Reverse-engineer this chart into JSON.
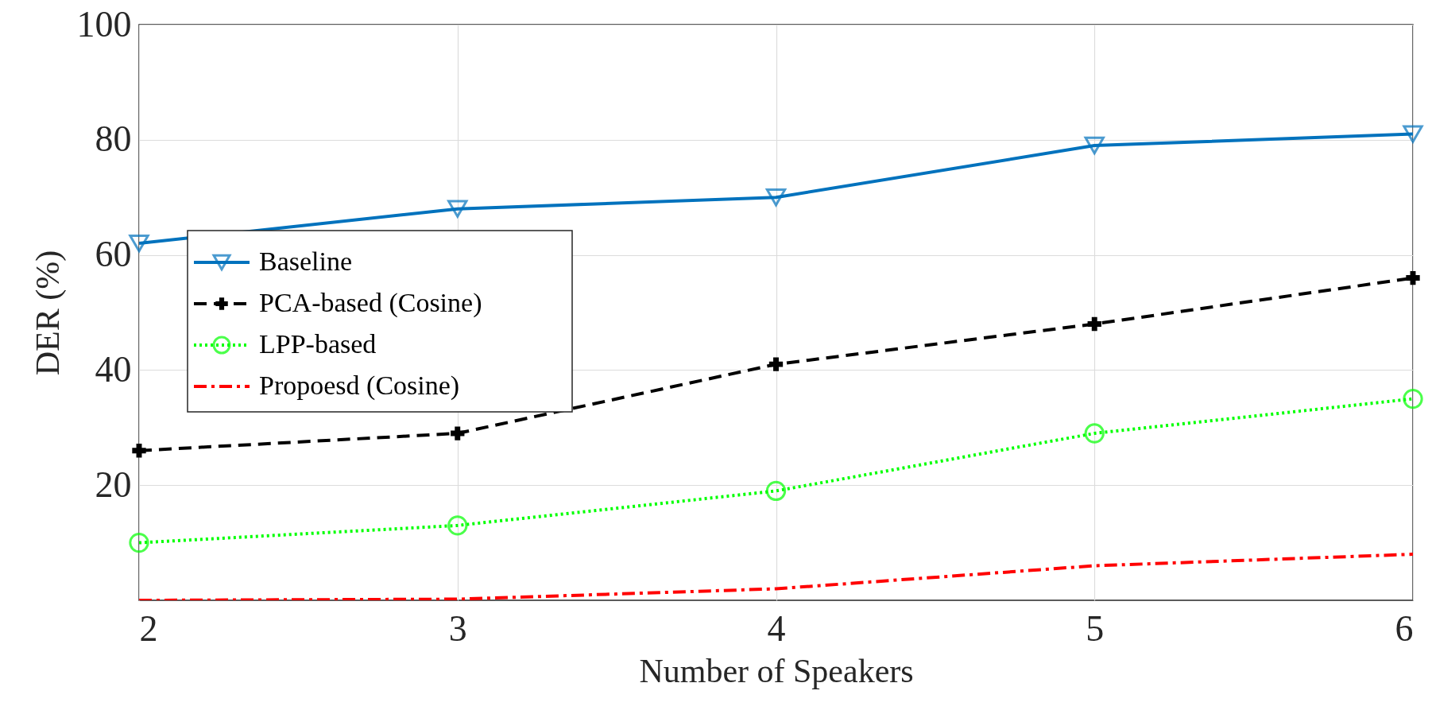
{
  "chart_data": {
    "type": "line",
    "xlabel": "Number of Speakers",
    "ylabel": "DER (%)",
    "x": [
      2,
      3,
      4,
      5,
      6
    ],
    "series": [
      {
        "name": "Baseline",
        "color": "#0072bd",
        "marker": "triangle",
        "line_style": "solid",
        "values": [
          62,
          68,
          70,
          79,
          81
        ]
      },
      {
        "name": "PCA-based (Cosine)",
        "color": "#000000",
        "marker": "cross",
        "line_style": "dashed",
        "values": [
          26,
          29,
          41,
          48,
          56
        ]
      },
      {
        "name": "LPP-based",
        "color": "#00ff00",
        "marker": "circle",
        "line_style": "dotted",
        "values": [
          10,
          13,
          19,
          29,
          35
        ]
      },
      {
        "name": "Propoesd (Cosine)",
        "color": "#ff0000",
        "marker": "none",
        "line_style": "dashdot",
        "values": [
          0,
          0.2,
          2,
          6,
          8
        ]
      }
    ],
    "xlim": [
      2,
      6
    ],
    "xticks": [
      2,
      3,
      4,
      5,
      6
    ],
    "ylim": [
      0,
      100
    ],
    "yticks": [
      20,
      40,
      60,
      80,
      100
    ],
    "grid": true,
    "legend": "left"
  }
}
